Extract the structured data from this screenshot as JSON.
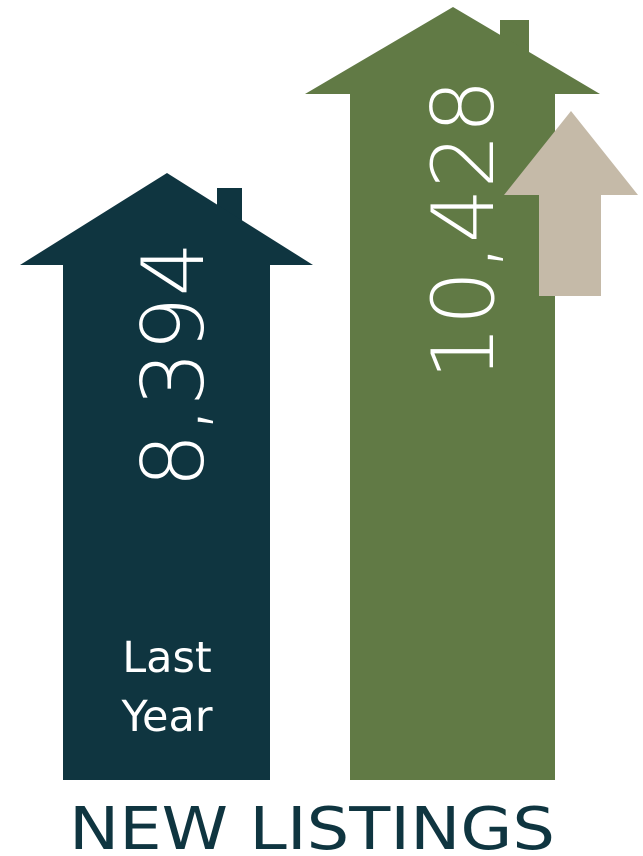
{
  "chart_data": {
    "type": "bar",
    "title": "NEW LISTINGS",
    "categories": [
      "Last Year",
      ""
    ],
    "values": [
      8394,
      10428
    ],
    "value_labels": [
      "8,394",
      "10,428"
    ],
    "category_lines": [
      [
        "Last",
        "Year"
      ],
      []
    ],
    "trend_indicator": "up",
    "colors": {
      "last_year": "#0f3540",
      "this_year": "#617a45",
      "trend_arrow": "#c5baa8",
      "text_on_bar": "#ffffff",
      "title": "#0f3540"
    }
  }
}
